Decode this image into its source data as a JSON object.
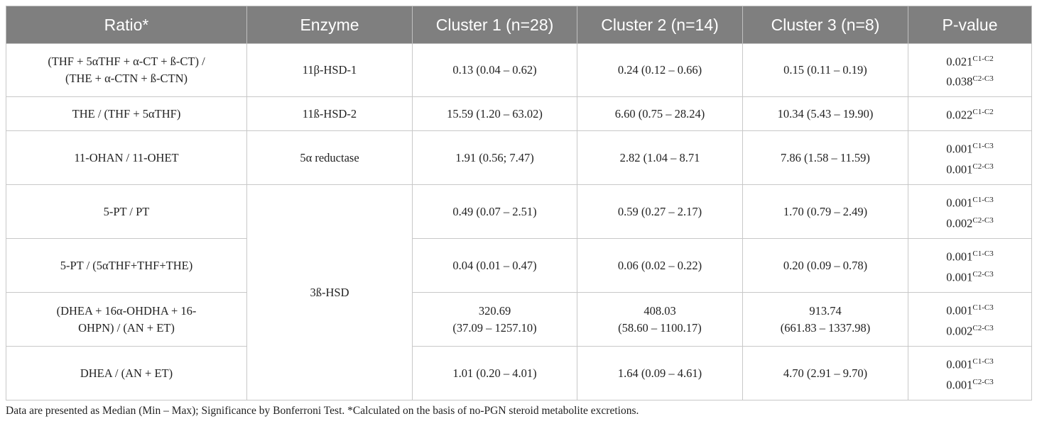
{
  "table": {
    "header": [
      "Ratio*",
      "Enzyme",
      "Cluster 1 (n=28)",
      "Cluster 2 (n=14)",
      "Cluster 3 (n=8)",
      "P-value"
    ],
    "rows": [
      {
        "ratio": [
          "(THF + 5αTHF + α-CT + ß-CT) /",
          "(THE + α-CTN + ß-CTN)"
        ],
        "enzyme": "11β-HSD-1",
        "c1": [
          "0.13 (0.04 – 0.62)"
        ],
        "c2": [
          "0.24 (0.12 – 0.66)"
        ],
        "c3": [
          "0.15 (0.11 – 0.19)"
        ],
        "p": [
          {
            "value": "0.021",
            "sup": "C1-C2"
          },
          {
            "value": "0.038",
            "sup": "C2-C3"
          }
        ]
      },
      {
        "ratio": [
          "THE / (THF + 5αTHF)"
        ],
        "enzyme": "11ß-HSD-2",
        "c1": [
          "15.59 (1.20 – 63.02)"
        ],
        "c2": [
          "6.60 (0.75 – 28.24)"
        ],
        "c3": [
          "10.34 (5.43 – 19.90)"
        ],
        "p": [
          {
            "value": "0.022",
            "sup": "C1-C2"
          }
        ]
      },
      {
        "ratio": [
          "11-OHAN / 11-OHET"
        ],
        "enzyme": "5α reductase",
        "c1": [
          "1.91 (0.56; 7.47)"
        ],
        "c2": [
          "2.82 (1.04 – 8.71"
        ],
        "c3": [
          "7.86 (1.58 – 11.59)"
        ],
        "p": [
          {
            "value": "0.001",
            "sup": "C1-C3"
          },
          {
            "value": "0.001",
            "sup": "C2-C3"
          }
        ]
      },
      {
        "ratio": [
          "5-PT / PT"
        ],
        "enzyme": "3ß-HSD",
        "c1": [
          "0.49 (0.07 – 2.51)"
        ],
        "c2": [
          "0.59 (0.27 – 2.17)"
        ],
        "c3": [
          "1.70 (0.79 – 2.49)"
        ],
        "p": [
          {
            "value": "0.001",
            "sup": "C1-C3"
          },
          {
            "value": "0.002",
            "sup": "C2-C3"
          }
        ]
      },
      {
        "ratio": [
          "5-PT / (5αTHF+THF+THE)"
        ],
        "c1": [
          "0.04 (0.01 – 0.47)"
        ],
        "c2": [
          "0.06 (0.02 – 0.22)"
        ],
        "c3": [
          "0.20 (0.09 – 0.78)"
        ],
        "p": [
          {
            "value": "0.001",
            "sup": "C1-C3"
          },
          {
            "value": "0.001",
            "sup": "C2-C3"
          }
        ]
      },
      {
        "ratio": [
          "(DHEA + 16α-OHDHA + 16-",
          "OHPN) / (AN + ET)"
        ],
        "c1": [
          "320.69",
          "(37.09 – 1257.10)"
        ],
        "c2": [
          "408.03",
          "(58.60 – 1100.17)"
        ],
        "c3": [
          "913.74",
          "(661.83 – 1337.98)"
        ],
        "p": [
          {
            "value": "0.001",
            "sup": "C1-C3"
          },
          {
            "value": "0.002",
            "sup": "C2-C3"
          }
        ]
      },
      {
        "ratio": [
          "DHEA / (AN + ET)"
        ],
        "c1": [
          "1.01 (0.20 – 4.01)"
        ],
        "c2": [
          "1.64 (0.09 – 4.61)"
        ],
        "c3": [
          "4.70 (2.91 – 9.70)"
        ],
        "p": [
          {
            "value": "0.001",
            "sup": "C1-C3"
          },
          {
            "value": "0.001",
            "sup": "C2-C3"
          }
        ]
      }
    ],
    "footnote": "Data are presented as Median (Min – Max); Significance by Bonferroni Test. *Calculated on the basis of no-PGN steroid metabolite excretions."
  }
}
